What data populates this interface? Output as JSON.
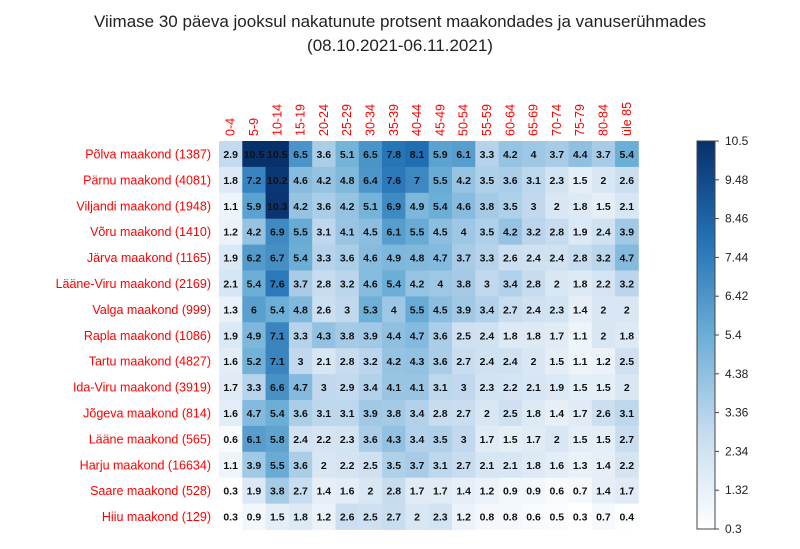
{
  "chart_data": {
    "type": "heatmap",
    "title": "Viimase 30 päeva jooksul nakatunute protsent maakondades ja vanuserühmades",
    "subtitle": "(08.10.2021-06.11.2021)",
    "columns": [
      "0-4",
      "5-9",
      "10-14",
      "15-19",
      "20-24",
      "25-29",
      "30-34",
      "35-39",
      "40-44",
      "45-49",
      "50-54",
      "55-59",
      "60-64",
      "65-69",
      "70-74",
      "75-79",
      "80-84",
      "üle 85"
    ],
    "rows": [
      "Põlva maakond (1387)",
      "Pärnu maakond (4081)",
      "Viljandi maakond (1948)",
      "Võru maakond (1410)",
      "Järva maakond (1165)",
      "Lääne-Viru maakond (2169)",
      "Valga maakond (999)",
      "Rapla maakond (1086)",
      "Tartu maakond (4827)",
      "Ida-Viru maakond (3919)",
      "Jõgeva maakond (814)",
      "Lääne maakond (565)",
      "Harju maakond (16634)",
      "Saare maakond (528)",
      "Hiiu maakond (129)"
    ],
    "values": [
      [
        "2.9",
        "10.5",
        "10.5",
        "6.5",
        "3.6",
        "5.1",
        "6.5",
        "7.8",
        "8.1",
        "5.9",
        "6.1",
        "3.3",
        "4.2",
        "4",
        "3.7",
        "4.4",
        "3.7",
        "5.4"
      ],
      [
        "1.8",
        "7.2",
        "10.2",
        "4.6",
        "4.2",
        "4.8",
        "6.4",
        "7.6",
        "7",
        "5.5",
        "4.2",
        "3.5",
        "3.6",
        "3.1",
        "2.3",
        "1.5",
        "2",
        "2.6"
      ],
      [
        "1.1",
        "5.9",
        "10.3",
        "4.2",
        "3.6",
        "4.2",
        "5.1",
        "6.9",
        "4.9",
        "5.4",
        "4.6",
        "3.8",
        "3.5",
        "3",
        "2",
        "1.8",
        "1.5",
        "2.1"
      ],
      [
        "1.2",
        "4.2",
        "6.9",
        "5.5",
        "3.1",
        "4.1",
        "4.5",
        "6.1",
        "5.5",
        "4.5",
        "4",
        "3.5",
        "4.2",
        "3.2",
        "2.8",
        "1.9",
        "2.4",
        "3.9"
      ],
      [
        "1.9",
        "6.2",
        "6.7",
        "5.4",
        "3.3",
        "3.6",
        "4.6",
        "4.9",
        "4.8",
        "4.7",
        "3.7",
        "3.3",
        "2.6",
        "2.4",
        "2.4",
        "2.8",
        "3.2",
        "4.7"
      ],
      [
        "2.1",
        "5.4",
        "7.6",
        "3.7",
        "2.8",
        "3.2",
        "4.6",
        "5.4",
        "4.2",
        "4",
        "3.8",
        "3",
        "3.4",
        "2.8",
        "2",
        "1.8",
        "2.2",
        "3.2"
      ],
      [
        "1.3",
        "6",
        "5.4",
        "4.8",
        "2.6",
        "3",
        "5.3",
        "4",
        "5.5",
        "4.5",
        "3.9",
        "3.4",
        "2.7",
        "2.4",
        "2.3",
        "1.4",
        "2",
        "2"
      ],
      [
        "1.9",
        "4.9",
        "7.1",
        "3.3",
        "4.3",
        "3.8",
        "3.9",
        "4.4",
        "4.7",
        "3.6",
        "2.5",
        "2.4",
        "1.8",
        "1.8",
        "1.7",
        "1.1",
        "2",
        "1.8"
      ],
      [
        "1.6",
        "5.2",
        "7.1",
        "3",
        "2.1",
        "2.8",
        "3.2",
        "4.2",
        "4.3",
        "3.6",
        "2.7",
        "2.4",
        "2.4",
        "2",
        "1.5",
        "1.1",
        "1.2",
        "2.5"
      ],
      [
        "1.7",
        "3.3",
        "6.6",
        "4.7",
        "3",
        "2.9",
        "3.4",
        "4.1",
        "4.1",
        "3.1",
        "3",
        "2.3",
        "2.2",
        "2.1",
        "1.9",
        "1.5",
        "1.5",
        "2"
      ],
      [
        "1.6",
        "4.7",
        "5.4",
        "3.6",
        "3.1",
        "3.1",
        "3.9",
        "3.8",
        "3.4",
        "2.8",
        "2.7",
        "2",
        "2.5",
        "1.8",
        "1.4",
        "1.7",
        "2.6",
        "3.1"
      ],
      [
        "0.6",
        "6.1",
        "5.8",
        "2.4",
        "2.2",
        "2.3",
        "3.6",
        "4.3",
        "3.4",
        "3.5",
        "3",
        "1.7",
        "1.5",
        "1.7",
        "2",
        "1.5",
        "1.5",
        "2.7"
      ],
      [
        "1.1",
        "3.9",
        "5.5",
        "3.6",
        "2",
        "2.2",
        "2.5",
        "3.5",
        "3.7",
        "3.1",
        "2.7",
        "2.1",
        "2.1",
        "1.8",
        "1.6",
        "1.3",
        "1.4",
        "2.2"
      ],
      [
        "0.3",
        "1.9",
        "3.8",
        "2.7",
        "1.4",
        "1.6",
        "2",
        "2.8",
        "1.7",
        "1.7",
        "1.4",
        "1.2",
        "0.9",
        "0.9",
        "0.6",
        "0.7",
        "1.4",
        "1.7"
      ],
      [
        "0.3",
        "0.9",
        "1.5",
        "1.8",
        "1.2",
        "2.6",
        "2.5",
        "2.7",
        "2",
        "2.3",
        "1.2",
        "0.8",
        "0.8",
        "0.6",
        "0.5",
        "0.3",
        "0.7",
        "0.4"
      ]
    ],
    "color_scale": {
      "min": 0.3,
      "max": 10.5,
      "low_color": "#ffffff",
      "high_color": "#08306b",
      "ticks": [
        "10.5",
        "9.48",
        "8.46",
        "7.44",
        "6.42",
        "5.4",
        "4.38",
        "3.36",
        "2.34",
        "1.32",
        "0.3"
      ]
    },
    "label_color": "#ff0000"
  }
}
